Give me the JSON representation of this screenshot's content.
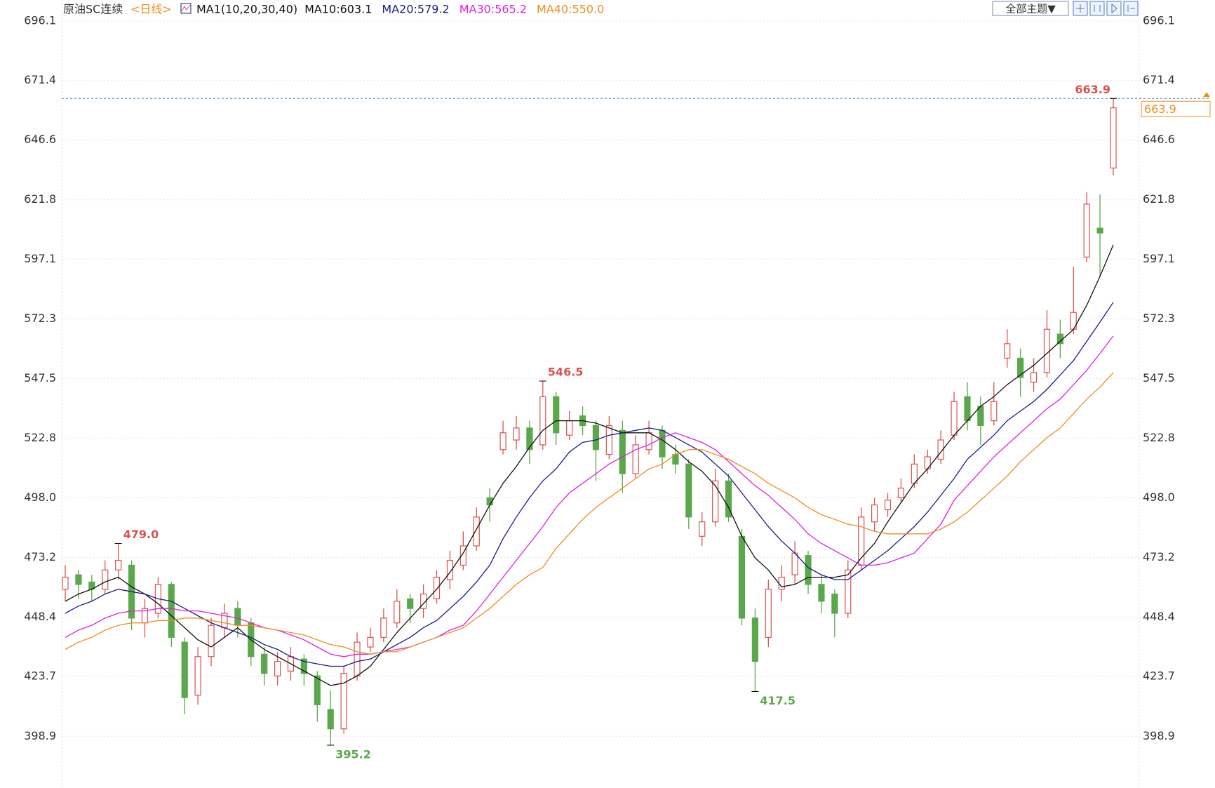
{
  "chart_data": {
    "type": "candlestick",
    "title": "原油SC连续",
    "period": "<日线>",
    "indicator": "MA1(10,20,30,40)",
    "theme_button": "全部主题▼",
    "up_color": "#d9534f",
    "down_color": "#5aa84b",
    "ylim": [
      378.0,
      704.8
    ],
    "yticks": [
      {
        "value": 398.9,
        "label": "398.9"
      },
      423.7,
      448.4,
      473.2,
      {
        "value": 498,
        "label": "498.0"
      },
      522.8,
      547.5,
      572.3,
      597.1,
      621.8,
      646.6,
      671.4,
      696.1
    ],
    "grid": true,
    "ohlc": [
      [
        460,
        470,
        455,
        465
      ],
      [
        466,
        468,
        456,
        462
      ],
      [
        463,
        466,
        455,
        460
      ],
      [
        460,
        472,
        458,
        468
      ],
      [
        468,
        479,
        464,
        472
      ],
      [
        470,
        472,
        443,
        448
      ],
      [
        446,
        456,
        440,
        452
      ],
      [
        450,
        465,
        448,
        462
      ],
      [
        462,
        463,
        436,
        440
      ],
      [
        438,
        440,
        408,
        415
      ],
      [
        416,
        436,
        412,
        432
      ],
      [
        432,
        448,
        428,
        445
      ],
      [
        444,
        454,
        440,
        450
      ],
      [
        452,
        455,
        440,
        445
      ],
      [
        446,
        448,
        428,
        432
      ],
      [
        433,
        436,
        420,
        425
      ],
      [
        424,
        434,
        420,
        430
      ],
      [
        426,
        436,
        422,
        432
      ],
      [
        431,
        433,
        420,
        425
      ],
      [
        424,
        426,
        405,
        412
      ],
      [
        410,
        418,
        395.2,
        402
      ],
      [
        402,
        428,
        400,
        425
      ],
      [
        424,
        442,
        422,
        438
      ],
      [
        436,
        444,
        434,
        440
      ],
      [
        440,
        452,
        438,
        448
      ],
      [
        446,
        460,
        444,
        455
      ],
      [
        456,
        458,
        446,
        452
      ],
      [
        452,
        462,
        448,
        458
      ],
      [
        456,
        468,
        454,
        465
      ],
      [
        464,
        476,
        460,
        472
      ],
      [
        470,
        484,
        468,
        478
      ],
      [
        478,
        494,
        476,
        490
      ],
      [
        498,
        502,
        488,
        495
      ],
      [
        518,
        530,
        516,
        525
      ],
      [
        522,
        532,
        518,
        527
      ],
      [
        527,
        530,
        512,
        518
      ],
      [
        520,
        546.5,
        518,
        540
      ],
      [
        540,
        542,
        520,
        525
      ],
      [
        524,
        534,
        522,
        530
      ],
      [
        532,
        536,
        524,
        528
      ],
      [
        528,
        530,
        505,
        518
      ],
      [
        516,
        532,
        514,
        528
      ],
      [
        526,
        530,
        500,
        508
      ],
      [
        508,
        524,
        506,
        520
      ],
      [
        518,
        530,
        516,
        525
      ],
      [
        526,
        528,
        510,
        515
      ],
      [
        516,
        520,
        508,
        512
      ],
      [
        512,
        514,
        485,
        490
      ],
      [
        482,
        492,
        478,
        488
      ],
      [
        488,
        510,
        486,
        505
      ],
      [
        505,
        508,
        488,
        490
      ],
      [
        482,
        485,
        445,
        448
      ],
      [
        448,
        452,
        417.5,
        430
      ],
      [
        440,
        464,
        436,
        460
      ],
      [
        460,
        470,
        455,
        465
      ],
      [
        466,
        480,
        462,
        475
      ],
      [
        474,
        476,
        458,
        462
      ],
      [
        462,
        466,
        450,
        455
      ],
      [
        458,
        460,
        440,
        450
      ],
      [
        450,
        472,
        448,
        468
      ],
      [
        470,
        494,
        468,
        490
      ],
      [
        488,
        498,
        484,
        495
      ],
      [
        493,
        500,
        490,
        497
      ],
      [
        498,
        506,
        496,
        502
      ],
      [
        504,
        516,
        502,
        512
      ],
      [
        510,
        518,
        508,
        515
      ],
      [
        514,
        526,
        512,
        522
      ],
      [
        524,
        542,
        522,
        538
      ],
      [
        540,
        546,
        526,
        530
      ],
      [
        536,
        540,
        520,
        528
      ],
      [
        530,
        546,
        528,
        538
      ],
      [
        556,
        568,
        552,
        562
      ],
      [
        556,
        560,
        540,
        548
      ],
      [
        546,
        556,
        542,
        550
      ],
      [
        550,
        576,
        548,
        568
      ],
      [
        566,
        572,
        556,
        562
      ],
      [
        568,
        594,
        566,
        575
      ],
      [
        598,
        625,
        596,
        620
      ],
      [
        610,
        624,
        590,
        608
      ],
      [
        635,
        663.9,
        632,
        660
      ]
    ],
    "series": [
      {
        "name": "MA10:603.1",
        "color": "#111111",
        "values": [
          455,
          458,
          460,
          463,
          465,
          461,
          458,
          454,
          449,
          444,
          439,
          436,
          440,
          444,
          439,
          435,
          432,
          429,
          426,
          423,
          420,
          421,
          424,
          428,
          435,
          442,
          448,
          454,
          460,
          467,
          475,
          485,
          495,
          504,
          511,
          519,
          526,
          530,
          530,
          530,
          529,
          527,
          525,
          525,
          525,
          522,
          518,
          513,
          509,
          503,
          494,
          482,
          473,
          468,
          461,
          462,
          465,
          465,
          465,
          466,
          473,
          479,
          488,
          496,
          504,
          510,
          517,
          524,
          530,
          536,
          540,
          545,
          549,
          553,
          558,
          563,
          568,
          578,
          590,
          603.1
        ]
      },
      {
        "name": "MA20:579.2",
        "color": "#1a1a8c",
        "values": [
          450,
          453,
          455,
          458,
          460,
          459,
          458,
          456,
          455,
          452,
          449,
          446,
          444,
          442,
          440,
          437,
          435,
          432,
          430,
          429,
          428,
          428,
          430,
          431,
          434,
          437,
          440,
          444,
          447,
          452,
          457,
          463,
          470,
          481,
          490,
          498,
          505,
          510,
          517,
          521,
          522,
          524,
          525,
          526,
          527,
          526,
          523,
          520,
          517,
          512,
          507,
          500,
          493,
          486,
          480,
          475,
          469,
          466,
          464,
          464,
          468,
          472,
          476,
          481,
          486,
          492,
          499,
          506,
          514,
          519,
          524,
          530,
          534,
          538,
          543,
          549,
          555,
          563,
          571,
          579.2
        ]
      },
      {
        "name": "MA30:565.2",
        "color": "#e020e0",
        "values": [
          440,
          443,
          445,
          448,
          450,
          451,
          451,
          452,
          452,
          451,
          451,
          450,
          449,
          448,
          446,
          444,
          443,
          441,
          439,
          436,
          433,
          432,
          433,
          433,
          434,
          435,
          436,
          438,
          440,
          443,
          445,
          451,
          458,
          465,
          472,
          479,
          486,
          494,
          500,
          504,
          508,
          512,
          515,
          518,
          520,
          523,
          525,
          523,
          521,
          518,
          513,
          508,
          503,
          499,
          494,
          489,
          483,
          479,
          476,
          473,
          470,
          470,
          471,
          473,
          475,
          481,
          487,
          497,
          503,
          509,
          515,
          520,
          525,
          530,
          535,
          539,
          545,
          551,
          558,
          565.2
        ]
      },
      {
        "name": "MA40:550.0",
        "color": "#f08c1e",
        "values": [
          435,
          438,
          440,
          443,
          445,
          446,
          446,
          447,
          447,
          448,
          448,
          447,
          446,
          445,
          445,
          444,
          443,
          442,
          441,
          439,
          437,
          436,
          434,
          433,
          434,
          434,
          436,
          438,
          440,
          442,
          444,
          448,
          452,
          457,
          462,
          466,
          469,
          477,
          483,
          489,
          494,
          498,
          502,
          506,
          510,
          512,
          516,
          518,
          518,
          516,
          514,
          511,
          508,
          504,
          501,
          498,
          494,
          491,
          489,
          487,
          486,
          484,
          483,
          483,
          483,
          483,
          485,
          488,
          492,
          497,
          502,
          507,
          513,
          518,
          523,
          527,
          533,
          539,
          544,
          550
        ]
      }
    ],
    "annotations": [
      {
        "value": 479,
        "label": "479.0"
      },
      {
        "value": 395.2,
        "label": "395.2"
      },
      {
        "value": 546.5,
        "label": "546.5"
      },
      {
        "value": 417.5,
        "label": "417.5"
      },
      {
        "value": 663.9,
        "label": "663.9"
      }
    ],
    "last_price": {
      "value": 663.9,
      "label": "663.9",
      "color": "#f08c1e"
    }
  }
}
